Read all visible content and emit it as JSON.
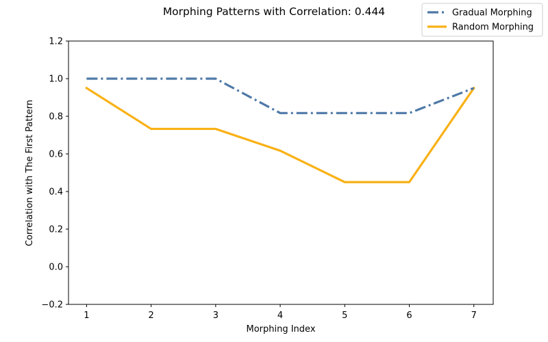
{
  "chart_data": {
    "type": "line",
    "title": "Morphing Patterns with Correlation: 0.444",
    "xlabel": "Morphing Index",
    "ylabel": "Correlation with The First Pattern",
    "x": [
      1,
      2,
      3,
      4,
      5,
      6,
      7
    ],
    "xlim": [
      0.72,
      7.3
    ],
    "ylim": [
      -0.2,
      1.2
    ],
    "xticks": [
      "1",
      "2",
      "3",
      "4",
      "5",
      "6",
      "7"
    ],
    "yticks": [
      "−0.2",
      "0.0",
      "0.2",
      "0.4",
      "0.6",
      "0.8",
      "1.0",
      "1.2"
    ],
    "ytick_values": [
      -0.2,
      0.0,
      0.2,
      0.4,
      0.6,
      0.8,
      1.0,
      1.2
    ],
    "grid": false,
    "legend_position": "top-right",
    "series": [
      {
        "name": "Gradual Morphing",
        "values": [
          1.0,
          1.0,
          1.0,
          0.817,
          0.817,
          0.817,
          0.95
        ],
        "color": "#4e79a7",
        "style": "dash-dot"
      },
      {
        "name": "Random Morphing",
        "values": [
          0.95,
          0.733,
          0.733,
          0.617,
          0.45,
          0.45,
          0.95
        ],
        "color": "#f9b115",
        "style": "solid"
      }
    ]
  }
}
